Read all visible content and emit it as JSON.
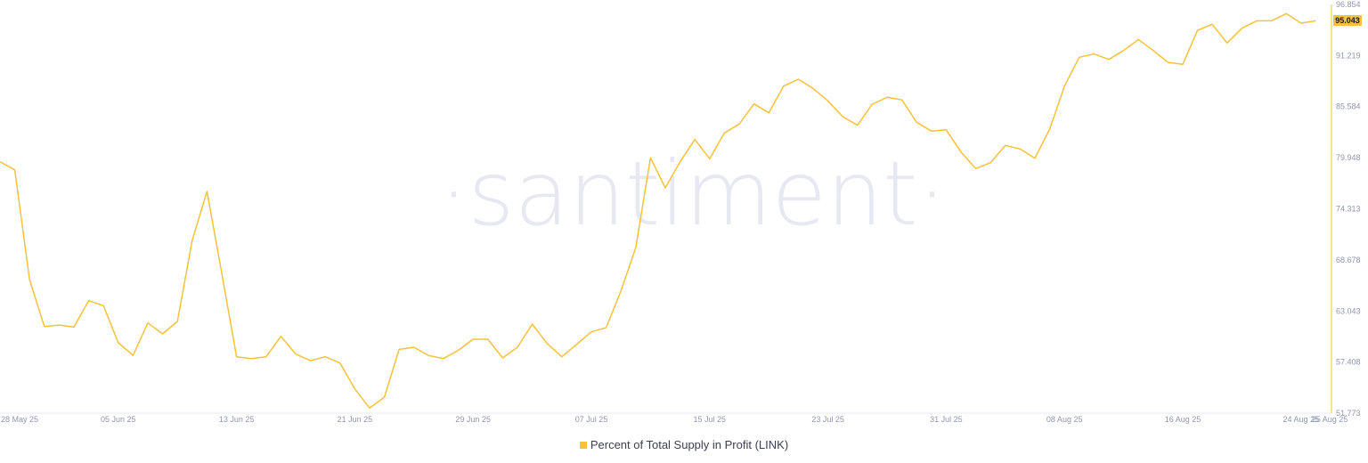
{
  "chart_data": {
    "type": "line",
    "title": "",
    "watermark": "·santiment·",
    "xlabel": "",
    "ylabel": "",
    "start_date": "28 May 25",
    "x_ticks": [
      "28 May 25",
      "05 Jun 25",
      "13 Jun 25",
      "21 Jun 25",
      "29 Jun 25",
      "07 Jul 25",
      "15 Jul 25",
      "23 Jul 25",
      "31 Jul 25",
      "08 Aug 25",
      "16 Aug 25",
      "24 Aug 25",
      "25 Aug 25"
    ],
    "y_ticks": [
      "96.854",
      "91.219",
      "85.584",
      "79.948",
      "74.313",
      "68.678",
      "63.043",
      "57.408",
      "51.773"
    ],
    "ylim": [
      51.773,
      96.854
    ],
    "y_axis_position": "right",
    "grid": false,
    "legend_position": "bottom",
    "current_value_label": "95.043",
    "series": [
      {
        "name": "Percent of Total Supply in Profit (LINK)",
        "color": "#f7c23a",
        "values": [
          79.5,
          78.61,
          66.5,
          61.33,
          61.49,
          61.27,
          64.18,
          63.63,
          59.53,
          58.15,
          61.72,
          60.51,
          61.89,
          70.83,
          76.23,
          67.22,
          57.99,
          57.79,
          57.99,
          60.25,
          58.28,
          57.56,
          57.99,
          57.3,
          54.45,
          52.33,
          53.54,
          58.81,
          59.04,
          58.12,
          57.79,
          58.71,
          59.92,
          59.92,
          57.86,
          59.04,
          61.59,
          59.46,
          57.99,
          59.36,
          60.74,
          61.2,
          65.25,
          70.01,
          79.93,
          76.62,
          79.5,
          81.95,
          79.83,
          82.68,
          83.66,
          85.88,
          84.9,
          87.85,
          88.6,
          87.59,
          86.22,
          84.48,
          83.53,
          85.85,
          86.61,
          86.34,
          83.86,
          82.88,
          83.03,
          80.58,
          78.75,
          79.4,
          81.31,
          80.91,
          79.89,
          83.1,
          87.85,
          91.03,
          91.38,
          90.79,
          91.78,
          92.99,
          91.78,
          90.47,
          90.24,
          94.01,
          94.66,
          92.6,
          94.23,
          95.05,
          95.05,
          95.84,
          94.79,
          95.043
        ]
      }
    ]
  }
}
